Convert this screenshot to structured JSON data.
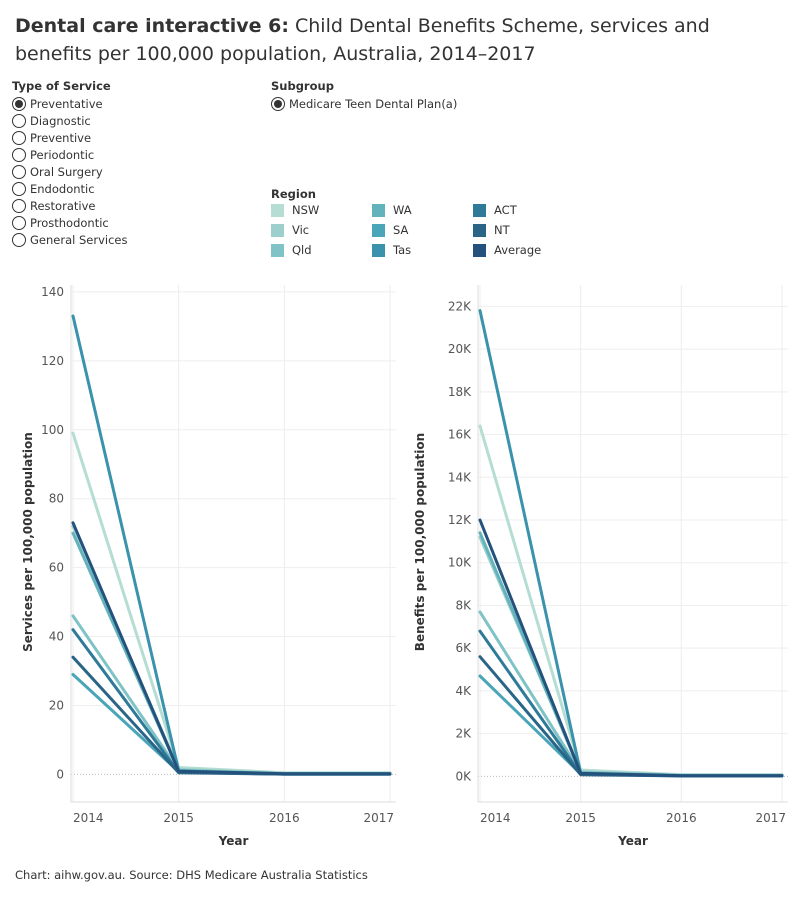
{
  "header": {
    "title_bold": "Dental care interactive 6:",
    "title_rest": " Child Dental Benefits Scheme, services and benefits per 100,000 population, Australia, 2014–2017"
  },
  "filters": {
    "type_of_service": {
      "label": "Type of Service",
      "selected": "Preventative",
      "options": [
        "Preventative",
        "Diagnostic",
        "Preventive",
        "Periodontic",
        "Oral Surgery",
        "Endodontic",
        "Restorative",
        "Prosthodontic",
        "General Services"
      ]
    },
    "subgroup": {
      "label": "Subgroup",
      "selected": "Medicare Teen Dental Plan(a)",
      "options": [
        "Medicare Teen Dental Plan(a)"
      ]
    }
  },
  "legend": {
    "title": "Region",
    "items": [
      {
        "name": "NSW",
        "color": "#b5ddd3"
      },
      {
        "name": "Vic",
        "color": "#9dd0cc"
      },
      {
        "name": "Qld",
        "color": "#7fc3c6"
      },
      {
        "name": "WA",
        "color": "#63b3bd"
      },
      {
        "name": "SA",
        "color": "#4aa5b8"
      },
      {
        "name": "Tas",
        "color": "#3a92ac"
      },
      {
        "name": "ACT",
        "color": "#2f7a99"
      },
      {
        "name": "NT",
        "color": "#2a6588"
      },
      {
        "name": "Average",
        "color": "#24527c"
      }
    ]
  },
  "chart_data": [
    {
      "type": "line",
      "xlabel": "Year",
      "ylabel": "Services per 100,000 population",
      "x": [
        "2014",
        "2015",
        "2016",
        "2017"
      ],
      "ylim": [
        -8,
        142
      ],
      "yticks": [
        0,
        20,
        40,
        60,
        80,
        100,
        120,
        140
      ],
      "ytick_labels": [
        "0",
        "20",
        "40",
        "60",
        "80",
        "100",
        "120",
        "140"
      ],
      "grid": true,
      "series": [
        {
          "name": "NSW",
          "color": "#b5ddd3",
          "values": [
            99,
            2,
            0.5,
            0.5
          ]
        },
        {
          "name": "Vic",
          "color": "#9dd0cc",
          "values": [
            72,
            1.5,
            0.3,
            0.3
          ]
        },
        {
          "name": "Qld",
          "color": "#7fc3c6",
          "values": [
            46,
            1.2,
            0.2,
            0.2
          ]
        },
        {
          "name": "WA",
          "color": "#63b3bd",
          "values": [
            70,
            1.1,
            0.2,
            0.2
          ]
        },
        {
          "name": "SA",
          "color": "#4aa5b8",
          "values": [
            29,
            0.8,
            0.1,
            0.1
          ]
        },
        {
          "name": "Tas",
          "color": "#3a92ac",
          "values": [
            133,
            1,
            0.2,
            0.2
          ]
        },
        {
          "name": "ACT",
          "color": "#2f7a99",
          "values": [
            42,
            0.6,
            0.1,
            0.1
          ]
        },
        {
          "name": "NT",
          "color": "#2a6588",
          "values": [
            34,
            0.5,
            0.1,
            0.1
          ]
        },
        {
          "name": "Average",
          "color": "#24527c",
          "values": [
            73,
            0.9,
            0.2,
            0.2
          ]
        }
      ]
    },
    {
      "type": "line",
      "xlabel": "Year",
      "ylabel": "Benefits per 100,000 population",
      "x": [
        "2014",
        "2015",
        "2016",
        "2017"
      ],
      "ylim": [
        -1200,
        23000
      ],
      "yticks": [
        0,
        2000,
        4000,
        6000,
        8000,
        10000,
        12000,
        14000,
        16000,
        18000,
        20000,
        22000
      ],
      "ytick_labels": [
        "0K",
        "2K",
        "4K",
        "6K",
        "8K",
        "10K",
        "12K",
        "14K",
        "16K",
        "18K",
        "20K",
        "22K"
      ],
      "grid": true,
      "series": [
        {
          "name": "NSW",
          "color": "#b5ddd3",
          "values": [
            16400,
            300,
            80,
            80
          ]
        },
        {
          "name": "Vic",
          "color": "#9dd0cc",
          "values": [
            11200,
            220,
            60,
            60
          ]
        },
        {
          "name": "Qld",
          "color": "#7fc3c6",
          "values": [
            7700,
            180,
            50,
            50
          ]
        },
        {
          "name": "WA",
          "color": "#63b3bd",
          "values": [
            11400,
            160,
            40,
            40
          ]
        },
        {
          "name": "SA",
          "color": "#4aa5b8",
          "values": [
            4700,
            120,
            30,
            30
          ]
        },
        {
          "name": "Tas",
          "color": "#3a92ac",
          "values": [
            21800,
            150,
            30,
            30
          ]
        },
        {
          "name": "ACT",
          "color": "#2f7a99",
          "values": [
            6800,
            100,
            20,
            20
          ]
        },
        {
          "name": "NT",
          "color": "#2a6588",
          "values": [
            5600,
            80,
            20,
            20
          ]
        },
        {
          "name": "Average",
          "color": "#24527c",
          "values": [
            12000,
            140,
            30,
            30
          ]
        }
      ]
    }
  ],
  "footer": {
    "source": "Chart: aihw.gov.au. Source: DHS Medicare Australia Statistics"
  }
}
